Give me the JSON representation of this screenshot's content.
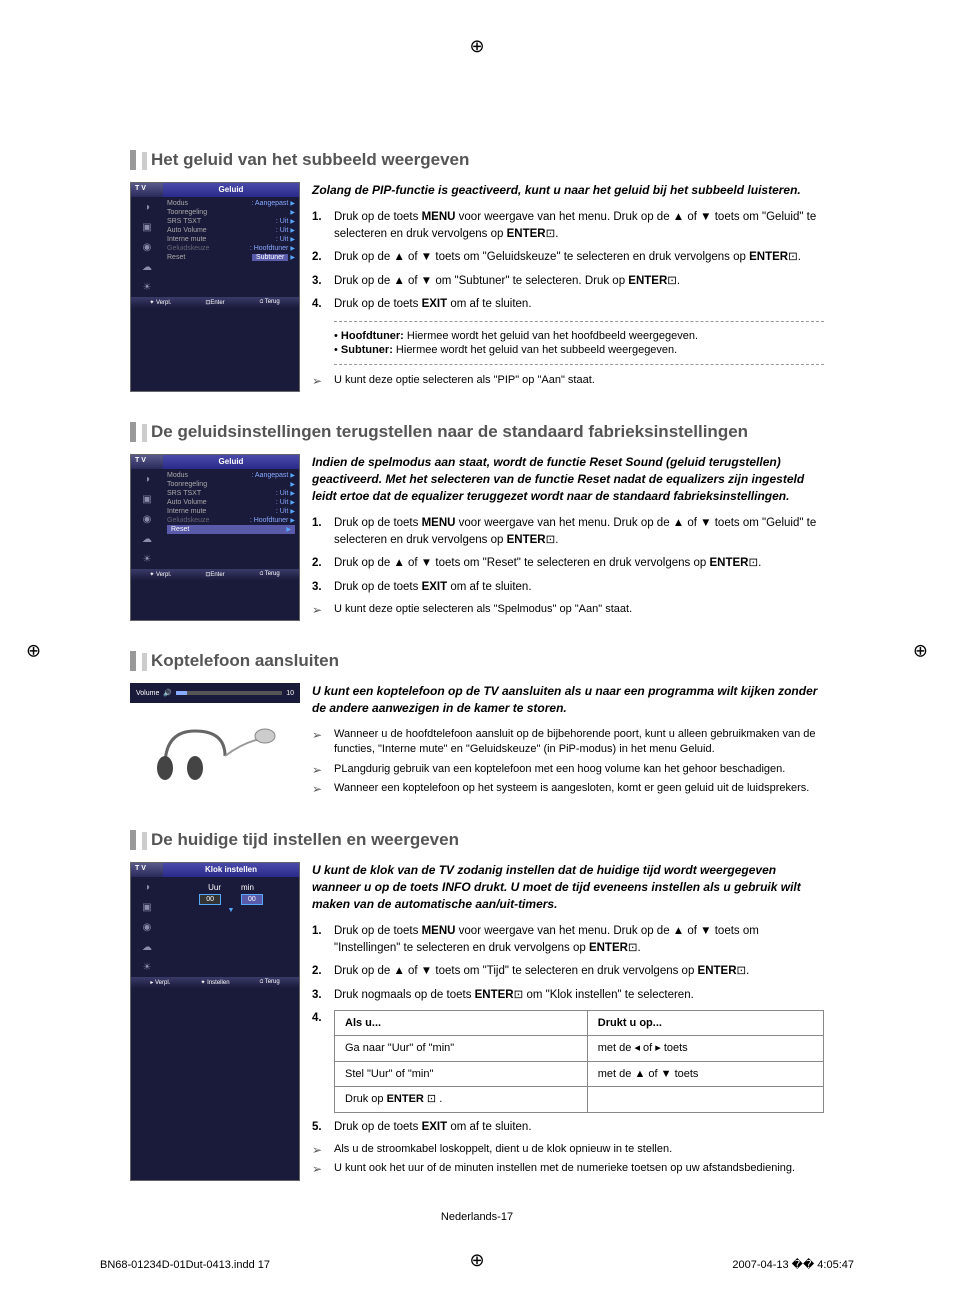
{
  "reg_mark": "⊕",
  "section1": {
    "title": "Het geluid van het subbeeld weergeven",
    "menu": {
      "tv": "T V",
      "header": "Geluid",
      "items": [
        {
          "label": "Modus",
          "value": ": Aangepast"
        },
        {
          "label": "Toonregeling",
          "value": ""
        },
        {
          "label": "SRS TSXT",
          "value": ": Uit"
        },
        {
          "label": "Auto Volume",
          "value": ": Uit"
        },
        {
          "label": "Interne mute",
          "value": ": Uit"
        },
        {
          "label": "Geluidskeuze",
          "value": ": Hoofdtuner",
          "dim": true
        },
        {
          "label": "Reset",
          "value": "Subtuner",
          "highlight": true
        }
      ],
      "footer": [
        "✦ Verpl.",
        "⊡Enter",
        "⫏ Terug"
      ]
    },
    "intro": "Zolang de PIP-functie is geactiveerd, kunt u naar het geluid bij het subbeeld luisteren.",
    "steps": [
      "Druk op de toets <b>MENU</b> voor weergave van het menu. Druk op de ▲ of ▼ toets om \"Geluid\" te selecteren en druk vervolgens op <b>ENTER</b>⊡.",
      "Druk op de ▲ of ▼ toets om \"Geluidskeuze\" te selecteren en druk vervolgens op <b>ENTER</b>⊡.",
      "Druk op de ▲ of ▼ om \"Subtuner\" te selecteren. Druk op <b>ENTER</b>⊡.",
      "Druk op de toets <b>EXIT</b> om af te sluiten."
    ],
    "notes": [
      "• <b>Hoofdtuner:</b> Hiermee wordt het geluid van het hoofdbeeld weergegeven.",
      "• <b>Subtuner:</b> Hiermee wordt het geluid van het subbeeld weergegeven."
    ],
    "arrow_note": "U kunt deze optie selecteren als \"PIP\" op \"Aan\" staat."
  },
  "section2": {
    "title": "De geluidsinstellingen terugstellen naar de standaard fabrieksinstellingen",
    "menu": {
      "tv": "T V",
      "header": "Geluid",
      "items": [
        {
          "label": "Modus",
          "value": ": Aangepast"
        },
        {
          "label": "Toonregeling",
          "value": ""
        },
        {
          "label": "SRS TSXT",
          "value": ": Uit"
        },
        {
          "label": "Auto Volume",
          "value": ": Uit"
        },
        {
          "label": "Interne mute",
          "value": ": Uit"
        },
        {
          "label": "Geluidskeuze",
          "value": ": Hoofdtuner",
          "dim": true
        },
        {
          "label": "Reset",
          "value": "",
          "highlight_row": true
        }
      ],
      "footer": [
        "✦ Verpl.",
        "⊡Enter",
        "⫏ Terug"
      ]
    },
    "intro": "Indien de spelmodus aan staat, wordt de functie Reset Sound (geluid terugstellen) geactiveerd. Met het selecteren van de functie Reset nadat de equalizers zijn ingesteld leidt ertoe dat de equalizer teruggezet wordt naar de standaard fabrieksinstellingen.",
    "steps": [
      "Druk op de toets <b>MENU</b> voor weergave van het menu. Druk op de ▲ of ▼ toets om \"Geluid\" te selecteren en druk vervolgens op <b>ENTER</b>⊡.",
      "Druk op de ▲ of ▼ toets om \"Reset\" te selecteren en druk vervolgens op <b>ENTER</b>⊡.",
      "Druk op de toets <b>EXIT</b> om af te sluiten."
    ],
    "arrow_note": "U kunt deze optie selecteren als \"Spelmodus\" op \"Aan\" staat."
  },
  "section3": {
    "title": "Koptelefoon aansluiten",
    "volume_label": "Volume",
    "volume_value": "10",
    "intro": "U kunt een koptelefoon op de TV aansluiten als u naar een programma wilt kijken zonder de andere aanwezigen in de kamer te storen.",
    "arrow_notes": [
      "Wanneer u de hoofdtelefoon aansluit op de bijbehorende poort, kunt u alleen gebruikmaken van de functies, \"Interne mute\" en \"Geluidskeuze\" (in PiP-modus) in het menu Geluid.",
      "PLangdurig gebruik van een koptelefoon met een hoog volume kan het gehoor beschadigen.",
      "Wanneer een koptelefoon op het systeem is aangesloten, komt er geen geluid uit de luidsprekers."
    ]
  },
  "section4": {
    "title": "De huidige tijd instellen en weergeven",
    "menu": {
      "tv": "T V",
      "header": "Klok instellen",
      "uur_label": "Uur",
      "min_label": "min",
      "uur_val": "00",
      "min_val": "00",
      "footer": [
        "▸ Verpl.",
        "✦ Instellen",
        "⫏ Terug"
      ]
    },
    "intro": "U kunt de klok van de TV zodanig instellen dat de huidige tijd wordt weergegeven wanneer u op de toets INFO drukt. U moet de tijd eveneens instellen als u gebruik wilt maken van de automatische aan/uit-timers.",
    "steps": [
      "Druk op de toets <b>MENU</b> voor weergave van het menu. Druk op de ▲ of ▼ toets om \"Instellingen\" te selecteren en druk vervolgens op <b>ENTER</b>⊡.",
      "Druk op de ▲ of ▼ toets om \"Tijd\" te selecteren en druk vervolgens op <b>ENTER</b>⊡.",
      "Druk nogmaals op de toets <b>ENTER</b>⊡ om \"Klok instellen\" te selecteren."
    ],
    "table": {
      "headers": [
        "Als u...",
        "Drukt u op..."
      ],
      "rows": [
        [
          "Ga naar \"Uur\" of \"min\"",
          "met de ◂ of ▸ toets"
        ],
        [
          "Stel \"Uur\" of \"min\"",
          "met de ▲ of ▼ toets"
        ],
        [
          "Druk op <b>ENTER</b> ⊡ .",
          ""
        ]
      ]
    },
    "step5": "Druk op de toets <b>EXIT</b> om af te sluiten.",
    "arrow_notes": [
      "Als u de stroomkabel loskoppelt, dient u de klok opnieuw in te stellen.",
      "U kunt ook het uur of de minuten instellen met de numerieke toetsen op uw afstandsbediening."
    ]
  },
  "page_num": "Nederlands-17",
  "footer_left": "BN68-01234D-01Dut-0413.indd   17",
  "footer_right": "2007-04-13   �� 4:05:47"
}
